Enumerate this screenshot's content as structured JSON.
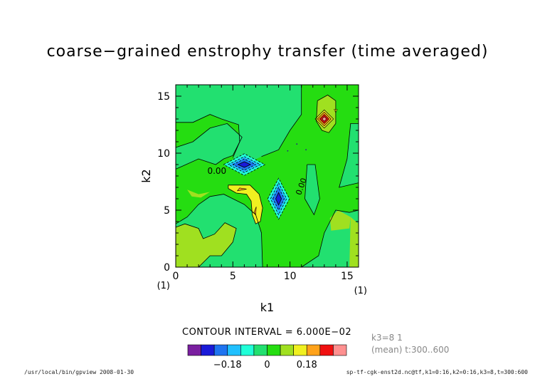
{
  "chart_data": {
    "type": "contour",
    "title": "coarse−grained enstrophy transfer (time averaged)",
    "xlabel": "k1",
    "ylabel": "k2",
    "xlim": [
      0,
      16
    ],
    "ylim": [
      0,
      16
    ],
    "x_ticks": [
      "0",
      "5",
      "10",
      "15"
    ],
    "y_ticks": [
      "0",
      "5",
      "10",
      "15"
    ],
    "x_axis_note": "(1)",
    "y_axis_note": "(1)",
    "grid": false,
    "contour_labels": [
      "0.00",
      "0.00"
    ],
    "contour_interval_text": "CONTOUR INTERVAL = 6.000E−02",
    "features": [
      {
        "k1": 6,
        "k2": 9,
        "sign": "negative",
        "level": "min"
      },
      {
        "k1": 9,
        "k2": 6,
        "sign": "negative",
        "level": "min"
      },
      {
        "k1": 6.5,
        "k2": 6.5,
        "sign": "positive",
        "level": "0.18"
      },
      {
        "k1": 13,
        "k2": 13,
        "sign": "positive",
        "level": "max"
      }
    ],
    "colorbar": {
      "colors": [
        "#7a1fa0",
        "#1a1ad8",
        "#1f74f0",
        "#20c0ff",
        "#20ffd8",
        "#22e070",
        "#25dd11",
        "#a0e020",
        "#f0f020",
        "#ffa21a",
        "#f01010",
        "#ff9090"
      ],
      "tick_labels": [
        "−0.18",
        "0",
        "0.18"
      ]
    }
  },
  "info_lines": [
    "k3=8 1",
    "(mean) t:300..600"
  ],
  "footer": {
    "left": "/usr/local/bin/gpview  2008-01-30",
    "right": "sp-tf-cgk-enst2d.nc@tf,k1=0:16,k2=0:16,k3=8,t=300:600"
  }
}
